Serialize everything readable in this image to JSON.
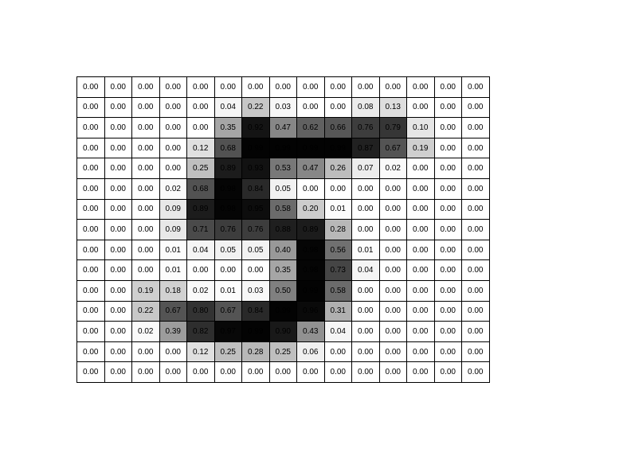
{
  "chart_data": {
    "type": "heatmap",
    "title": "",
    "xlabel": "",
    "ylabel": "",
    "colormap": "grayscale-inverted",
    "vmin": 0,
    "vmax": 1,
    "value_format": "0.00",
    "rows": 15,
    "cols": 15,
    "values": [
      [
        0,
        0,
        0,
        0,
        0,
        0,
        0,
        0,
        0,
        0,
        0,
        0,
        0,
        0,
        0
      ],
      [
        0,
        0,
        0,
        0,
        0,
        0.04,
        0.22,
        0.03,
        0,
        0,
        0.08,
        0.13,
        0,
        0,
        0
      ],
      [
        0,
        0,
        0,
        0,
        0,
        0.35,
        0.92,
        0.47,
        0.62,
        0.66,
        0.76,
        0.79,
        0.1,
        0,
        0
      ],
      [
        0,
        0,
        0,
        0,
        0.12,
        0.68,
        0.99,
        0.99,
        0.99,
        0.99,
        0.87,
        0.67,
        0.19,
        0,
        0
      ],
      [
        0,
        0,
        0,
        0,
        0.25,
        0.89,
        0.93,
        0.53,
        0.47,
        0.26,
        0.07,
        0.02,
        0,
        0,
        0
      ],
      [
        0,
        0,
        0,
        0.02,
        0.68,
        0.98,
        0.84,
        0.05,
        0,
        0,
        0,
        0,
        0,
        0,
        0
      ],
      [
        0,
        0,
        0,
        0.09,
        0.89,
        0.98,
        0.95,
        0.58,
        0.2,
        0.01,
        0,
        0,
        0,
        0,
        0
      ],
      [
        0,
        0,
        0,
        0.09,
        0.71,
        0.76,
        0.76,
        0.88,
        0.89,
        0.28,
        0,
        0,
        0,
        0,
        0
      ],
      [
        0,
        0,
        0,
        0.01,
        0.04,
        0.05,
        0.05,
        0.4,
        0.98,
        0.56,
        0.01,
        0,
        0,
        0,
        0
      ],
      [
        0,
        0,
        0,
        0.01,
        0,
        0,
        0,
        0.35,
        0.98,
        0.73,
        0.04,
        0,
        0,
        0,
        0
      ],
      [
        0,
        0,
        0.19,
        0.18,
        0.02,
        0.01,
        0.03,
        0.5,
        0.99,
        0.58,
        0,
        0,
        0,
        0,
        0
      ],
      [
        0,
        0,
        0.22,
        0.67,
        0.8,
        0.67,
        0.84,
        0.99,
        0.96,
        0.31,
        0,
        0,
        0,
        0,
        0
      ],
      [
        0,
        0,
        0.02,
        0.39,
        0.82,
        0.97,
        0.99,
        0.9,
        0.43,
        0.04,
        0,
        0,
        0,
        0,
        0
      ],
      [
        0,
        0,
        0,
        0,
        0.12,
        0.25,
        0.28,
        0.25,
        0.06,
        0,
        0,
        0,
        0,
        0,
        0
      ],
      [
        0,
        0,
        0,
        0,
        0,
        0,
        0,
        0,
        0,
        0,
        0,
        0,
        0,
        0,
        0
      ]
    ]
  }
}
